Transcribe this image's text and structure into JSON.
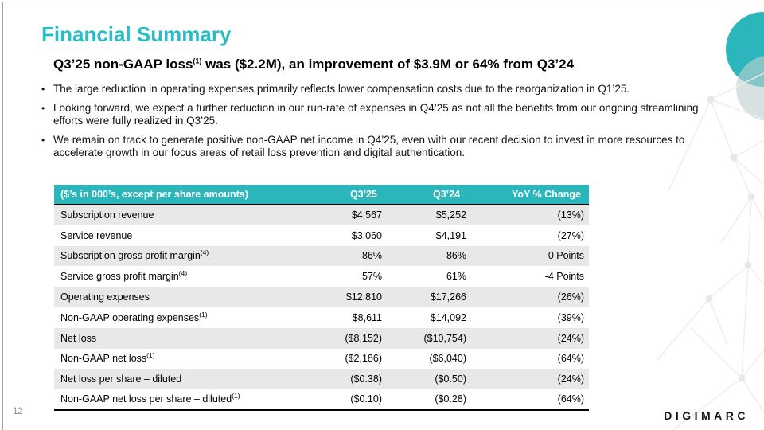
{
  "slide": {
    "title": "Financial Summary",
    "subtitle_pre": "Q3’25 non-GAAP loss",
    "subtitle_sup": "(1)",
    "subtitle_post": " was ($2.2M), an improvement of $3.9M or 64% from Q3’24",
    "bullets": [
      "The large reduction in operating expenses primarily reflects lower compensation costs due to the reorganization in Q1’25.",
      "Looking forward, we expect a further reduction in our run-rate of expenses in Q4’25 as not all the benefits from our ongoing streamlining efforts were fully realized in Q3’25.",
      "We remain on track to generate positive non-GAAP net income in Q4’25, even with our recent decision to invest in more resources to accelerate growth in our focus areas of retail loss prevention and digital authentication."
    ],
    "page_number": "12",
    "logo_text": "DIGIMARC"
  },
  "table": {
    "header": {
      "label": "($’s in 000’s, except per share amounts)",
      "q325": "Q3’25",
      "q324": "Q3’24",
      "yoy": "YoY % Change"
    },
    "rows": [
      {
        "label": "Subscription revenue",
        "sup": "",
        "q325": "$4,567",
        "q324": "$5,252",
        "yoy": "(13%)"
      },
      {
        "label": "Service revenue",
        "sup": "",
        "q325": "$3,060",
        "q324": "$4,191",
        "yoy": "(27%)"
      },
      {
        "label": "Subscription gross profit margin",
        "sup": "(4)",
        "q325": "86%",
        "q324": "86%",
        "yoy": "0 Points"
      },
      {
        "label": "Service gross profit margin",
        "sup": "(4)",
        "q325": "57%",
        "q324": "61%",
        "yoy": "-4 Points"
      },
      {
        "label": "Operating expenses",
        "sup": "",
        "q325": "$12,810",
        "q324": "$17,266",
        "yoy": "(26%)"
      },
      {
        "label": "Non-GAAP operating expenses",
        "sup": "(1)",
        "q325": "$8,611",
        "q324": "$14,092",
        "yoy": "(39%)"
      },
      {
        "label": "Net loss",
        "sup": "",
        "q325": "($8,152)",
        "q324": "($10,754)",
        "yoy": "(24%)"
      },
      {
        "label": "Non-GAAP net loss",
        "sup": "(1)",
        "q325": "($2,186)",
        "q324": "($6,040)",
        "yoy": "(64%)"
      },
      {
        "label": "Net loss per share – diluted",
        "sup": "",
        "q325": "($0.38)",
        "q324": "($0.50)",
        "yoy": "(24%)"
      },
      {
        "label": "Non-GAAP net loss per share – diluted",
        "sup": "(1)",
        "q325": "($0.10)",
        "q324": "($0.28)",
        "yoy": "(64%)"
      }
    ]
  },
  "colors": {
    "accent_teal": "#2bb6bc",
    "title_teal": "#27bdc7",
    "row_stripe_gray": "#e8e8e8"
  }
}
